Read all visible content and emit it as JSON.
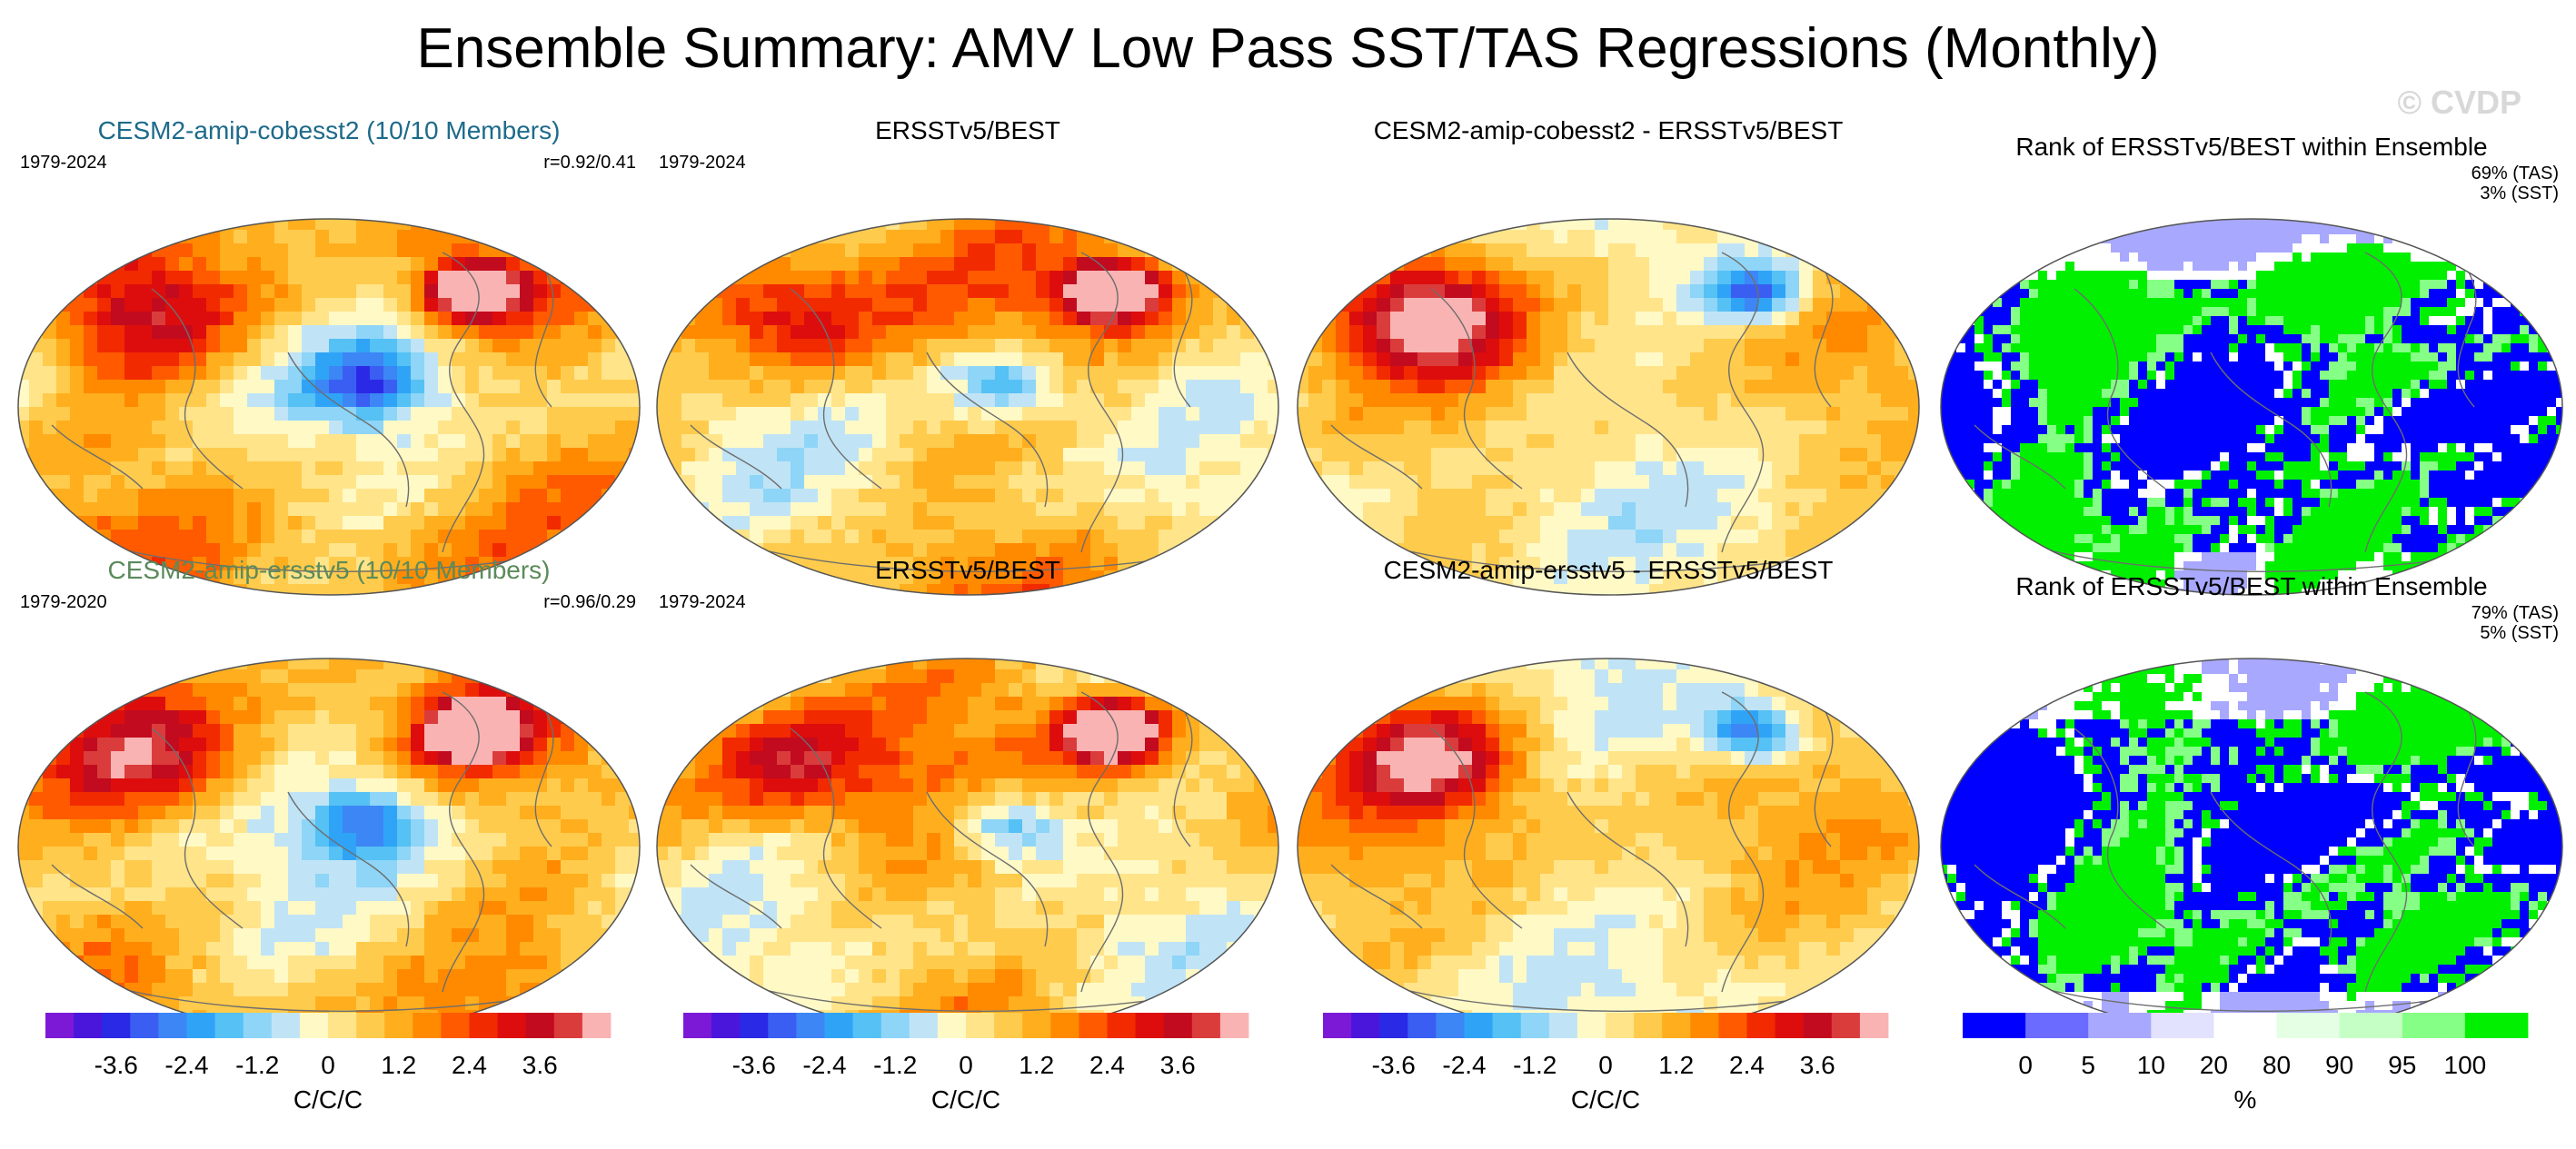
{
  "title": "Ensemble Summary: AMV Low Pass SST/TAS Regressions (Monthly)",
  "watermark": "© CVDP",
  "colors": {
    "row1_title": "#1d6a8a",
    "row2_title": "#5b8a5b",
    "regression_palette": [
      "#7c19d6",
      "#4b16dc",
      "#2a2ae6",
      "#3a5ef2",
      "#3d86f5",
      "#2fa4f7",
      "#55c1f4",
      "#8ed5f7",
      "#c0e4f6",
      "#fff9c6",
      "#ffe48a",
      "#ffcb4c",
      "#ffae1e",
      "#ff8a00",
      "#ff5a00",
      "#f22a00",
      "#dd0d0d",
      "#c20b1e",
      "#da3c3c",
      "#f9b3b3"
    ],
    "rank_palette": [
      "#0000ff",
      "#6b6bff",
      "#a8a8ff",
      "#e2e2ff",
      "#ffffff",
      "#e4ffe4",
      "#c6ffc6",
      "#86ff86",
      "#00f000"
    ]
  },
  "chart_data": [
    {
      "type": "heatmap",
      "id": "row1-col1",
      "title": "CESM2-amip-cobesst2 (10/10 Members)",
      "period": "1979-2024",
      "pattern_correlation": "r=0.92/0.41",
      "field": "AMV regression, ensemble mean"
    },
    {
      "type": "heatmap",
      "id": "row1-col2",
      "title": "ERSSTv5/BEST",
      "period": "1979-2024",
      "field": "AMV regression, observations"
    },
    {
      "type": "heatmap",
      "id": "row1-col3",
      "title": "CESM2-amip-cobesst2 - ERSSTv5/BEST",
      "field": "difference"
    },
    {
      "type": "heatmap",
      "id": "row1-col4",
      "title": "Rank of ERSSTv5/BEST within Ensemble",
      "tas_percent": "69% (TAS)",
      "sst_percent": "3% (SST)"
    },
    {
      "type": "heatmap",
      "id": "row2-col1",
      "title": "CESM2-amip-ersstv5 (10/10 Members)",
      "period": "1979-2020",
      "pattern_correlation": "r=0.96/0.29",
      "field": "AMV regression, ensemble mean"
    },
    {
      "type": "heatmap",
      "id": "row2-col2",
      "title": "ERSSTv5/BEST",
      "period": "1979-2024",
      "field": "AMV regression, observations"
    },
    {
      "type": "heatmap",
      "id": "row2-col3",
      "title": "CESM2-amip-ersstv5 - ERSSTv5/BEST",
      "field": "difference"
    },
    {
      "type": "heatmap",
      "id": "row2-col4",
      "title": "Rank of ERSSTv5/BEST within Ensemble",
      "tas_percent": "79% (TAS)",
      "sst_percent": "5% (SST)"
    }
  ],
  "colorbars": {
    "regression": {
      "ticks": [
        "-3.6",
        "-2.4",
        "-1.2",
        "0",
        "1.2",
        "2.4",
        "3.6"
      ],
      "tick_values": [
        -3.6,
        -2.4,
        -1.2,
        0,
        1.2,
        2.4,
        3.6
      ],
      "range": [
        -4.8,
        4.8
      ],
      "unit": "C/C/C"
    },
    "rank": {
      "ticks": [
        "0",
        "5",
        "10",
        "20",
        "80",
        "90",
        "95",
        "100"
      ],
      "unit": "%"
    }
  }
}
